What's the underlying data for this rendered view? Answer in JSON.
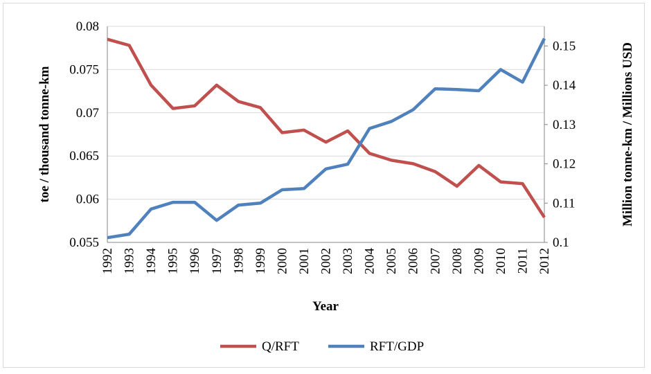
{
  "chart_data": {
    "type": "line",
    "x_label": "Year",
    "y_label": "toe / thousand tonne-km",
    "y2_label": "Million tonne-km / Millions USD",
    "categories": [
      "1992",
      "1993",
      "1994",
      "1995",
      "1996",
      "1997",
      "1998",
      "1999",
      "2000",
      "2001",
      "2002",
      "2003",
      "2004",
      "2005",
      "2006",
      "2007",
      "2008",
      "2009",
      "2010",
      "2011",
      "2012"
    ],
    "series": [
      {
        "name": "Q/RFT",
        "color": "#c0504d",
        "axis": "y",
        "values": [
          0.0785,
          0.0778,
          0.0732,
          0.0705,
          0.0708,
          0.0732,
          0.0713,
          0.0706,
          0.0677,
          0.068,
          0.0666,
          0.0679,
          0.0653,
          0.0645,
          0.0641,
          0.0632,
          0.0615,
          0.0639,
          0.062,
          0.0618,
          0.0579
        ]
      },
      {
        "name": "RFT/GDP",
        "color": "#4f81bd",
        "axis": "y2",
        "values": [
          0.1012,
          0.1021,
          0.1085,
          0.1102,
          0.1102,
          0.1056,
          0.1095,
          0.11,
          0.1134,
          0.1137,
          0.1187,
          0.1199,
          0.129,
          0.1308,
          0.1338,
          0.1391,
          0.1389,
          0.1386,
          0.144,
          0.1408,
          0.1519
        ]
      }
    ],
    "ylim": [
      0.055,
      0.08
    ],
    "yticks": [
      0.055,
      0.06,
      0.065,
      0.07,
      0.075,
      0.08
    ],
    "y2lim": [
      0.1,
      0.155
    ],
    "y2ticks": [
      0.1,
      0.11,
      0.12,
      0.13,
      0.14,
      0.15
    ],
    "grid": true,
    "legend": "bottom"
  }
}
